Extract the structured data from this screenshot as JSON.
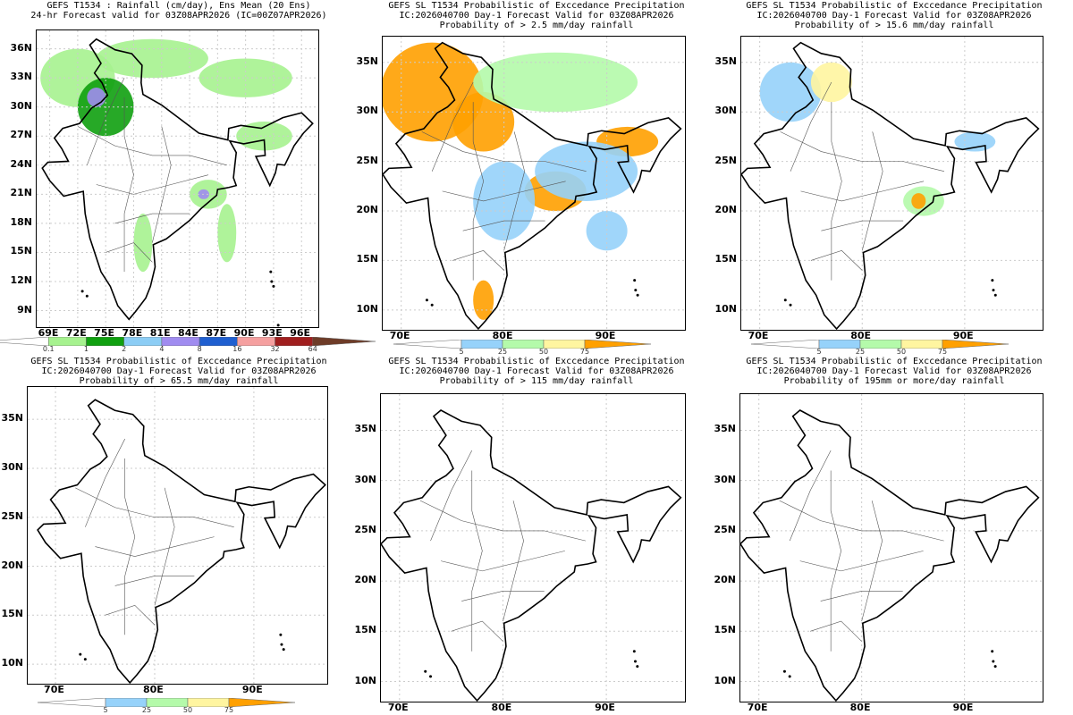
{
  "panels": [
    {
      "id": "p1",
      "title_lines": [
        "GEFS T1534 : Rainfall (cm/day), Ens Mean (20 Ens)",
        "24-hr Forecast valid for 03Z08APR2026 (IC=00Z07APR2026)"
      ],
      "lon_ticks": [
        "69E",
        "72E",
        "75E",
        "78E",
        "81E",
        "84E",
        "87E",
        "90E",
        "93E",
        "96E"
      ],
      "lat_ticks": [
        "9N",
        "12N",
        "15N",
        "18N",
        "21N",
        "24N",
        "27N",
        "30N",
        "33N",
        "36N"
      ],
      "colorbar": "rain"
    },
    {
      "id": "p2",
      "title_lines": [
        "GEFS SL T1534 Probabilistic of Exccedance Precipitation",
        "IC:2026040700 Day-1 Forecast Valid for 03Z08APR2026",
        "Probability of > 2.5 mm/day rainfall"
      ],
      "lon_ticks": [
        "70E",
        "80E",
        "90E"
      ],
      "lat_ticks": [
        "10N",
        "15N",
        "20N",
        "25N",
        "30N",
        "35N"
      ],
      "colorbar": "prob"
    },
    {
      "id": "p3",
      "title_lines": [
        "GEFS SL T1534 Probabilistic of Exccedance Precipitation",
        "IC:2026040700 Day-1 Forecast Valid for 03Z08APR2026",
        "Probability of > 15.6 mm/day rainfall"
      ],
      "lon_ticks": [
        "70E",
        "80E",
        "90E"
      ],
      "lat_ticks": [
        "10N",
        "15N",
        "20N",
        "25N",
        "30N",
        "35N"
      ],
      "colorbar": "prob"
    },
    {
      "id": "p4",
      "title_lines": [
        "GEFS SL T1534 Probabilistic of Exccedance Precipitation",
        "IC:2026040700 Day-1 Forecast Valid for 03Z08APR2026",
        "Probability of > 65.5 mm/day rainfall"
      ],
      "lon_ticks": [
        "70E",
        "80E",
        "90E"
      ],
      "lat_ticks": [
        "10N",
        "15N",
        "20N",
        "25N",
        "30N",
        "35N"
      ],
      "colorbar": "prob"
    },
    {
      "id": "p5",
      "title_lines": [
        "GEFS SL T1534 Probabilistic of Exccedance Precipitation",
        "IC:2026040700 Day-1 Forecast Valid for 03Z08APR2026",
        "Probability of > 115 mm/day rainfall"
      ],
      "lon_ticks": [
        "70E",
        "80E",
        "90E"
      ],
      "lat_ticks": [
        "10N",
        "15N",
        "20N",
        "25N",
        "30N",
        "35N"
      ],
      "colorbar": null
    },
    {
      "id": "p6",
      "title_lines": [
        "GEFS SL T1534 Probabilistic of Exccedance Precipitation",
        "IC:2026040700 Day-1 Forecast Valid for 03Z08APR2026",
        "Probability of 195mm or more/day rainfall"
      ],
      "lon_ticks": [
        "70E",
        "80E",
        "90E"
      ],
      "lat_ticks": [
        "10N",
        "15N",
        "20N",
        "25N",
        "30N",
        "35N"
      ],
      "colorbar": null
    }
  ],
  "colorbars": {
    "rain": {
      "labels": [
        "0.1",
        "1",
        "2",
        "4",
        "8",
        "16",
        "32",
        "64"
      ],
      "colors": [
        "#ffffff",
        "#a6f28f",
        "#10a010",
        "#8ccdf5",
        "#a08cf0",
        "#1f5fd0",
        "#f5a0a0",
        "#a01e1e",
        "#6e3c28"
      ]
    },
    "prob": {
      "labels": [
        "5",
        "25",
        "50",
        "75"
      ],
      "colors": [
        "#ffffff",
        "#96d2fa",
        "#b4faaa",
        "#fff5a0",
        "#ffa000"
      ]
    }
  },
  "shading": {
    "p1": [
      [
        72,
        33,
        4,
        3,
        1
      ],
      [
        75,
        30,
        3,
        3,
        2
      ],
      [
        74,
        31,
        1,
        1,
        4
      ],
      [
        86,
        21,
        2,
        1.5,
        1
      ],
      [
        85.5,
        21,
        0.6,
        0.5,
        4
      ],
      [
        80,
        35,
        6,
        2,
        1
      ],
      [
        90,
        33,
        5,
        2,
        1
      ],
      [
        92,
        27,
        3,
        1.5,
        1
      ],
      [
        79,
        16,
        1,
        3,
        1
      ],
      [
        88,
        17,
        1,
        3,
        1
      ]
    ],
    "p2": [
      [
        73,
        32,
        5,
        5,
        4
      ],
      [
        78,
        29,
        3,
        3,
        4
      ],
      [
        85,
        22,
        3,
        2,
        4
      ],
      [
        92,
        27,
        3,
        1.5,
        4
      ],
      [
        85,
        33,
        8,
        3,
        2
      ],
      [
        88,
        24,
        5,
        3,
        1
      ],
      [
        80,
        21,
        3,
        4,
        1
      ],
      [
        78,
        11,
        1,
        2,
        4
      ],
      [
        90,
        18,
        2,
        2,
        1
      ]
    ],
    "p3": [
      [
        73,
        32,
        3,
        3,
        1
      ],
      [
        77,
        33,
        2,
        2,
        3
      ],
      [
        86,
        21,
        2,
        1.5,
        2
      ],
      [
        85.5,
        21,
        0.7,
        0.8,
        4
      ],
      [
        91,
        27,
        2,
        1,
        1
      ]
    ],
    "p4": [],
    "p5": [],
    "p6": []
  }
}
